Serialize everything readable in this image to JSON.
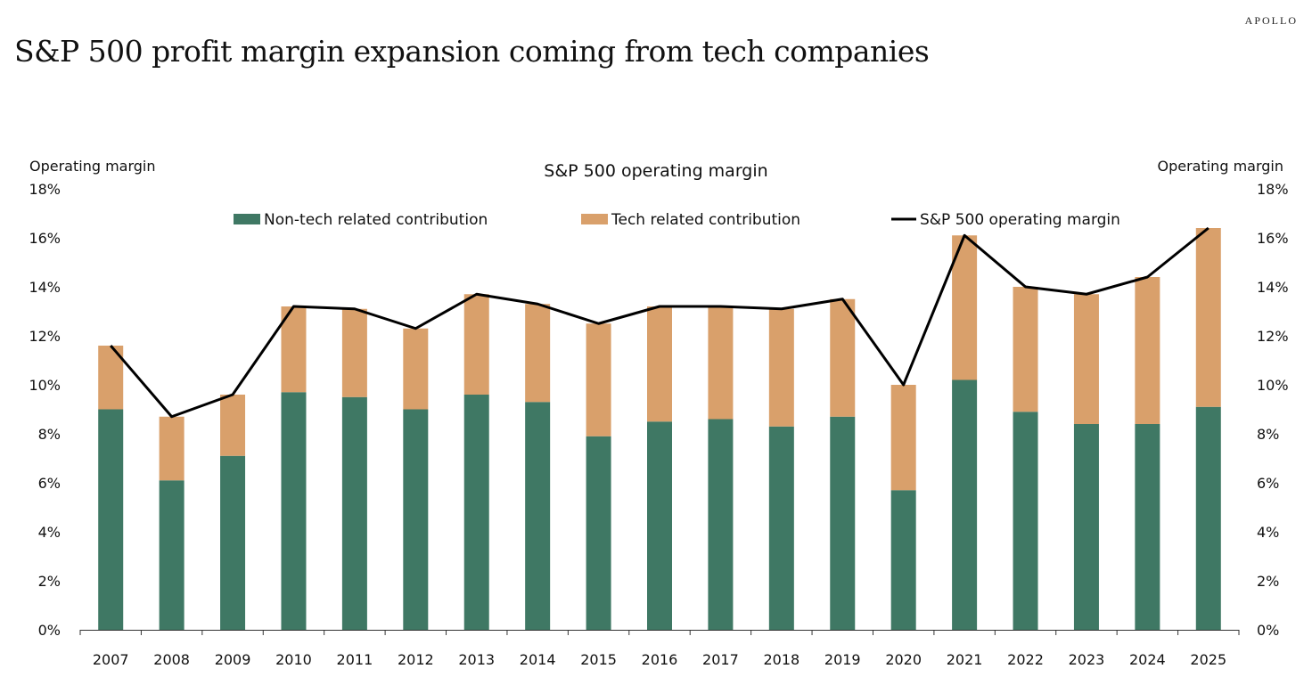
{
  "header": {
    "title": "S&P 500 profit margin expansion coming from tech companies",
    "brand": "APOLLO"
  },
  "chart_data": {
    "type": "bar",
    "title": "S&P 500 operating margin",
    "ylabel_left": "Operating margin",
    "ylabel_right": "Operating margin",
    "ylim": [
      0,
      18
    ],
    "yticks": [
      "0%",
      "2%",
      "4%",
      "6%",
      "8%",
      "10%",
      "12%",
      "14%",
      "16%",
      "18%"
    ],
    "legend_position": "top",
    "categories": [
      "2007",
      "2008",
      "2009",
      "2010",
      "2011",
      "2012",
      "2013",
      "2014",
      "2015",
      "2016",
      "2017",
      "2018",
      "2019",
      "2020",
      "2021",
      "2022",
      "2023",
      "2024",
      "2025"
    ],
    "series": [
      {
        "name": "Non-tech related contribution",
        "kind": "stacked-bar",
        "color": "#3f7864",
        "values": [
          9.0,
          6.1,
          7.1,
          9.7,
          9.5,
          9.0,
          9.6,
          9.3,
          7.9,
          8.5,
          8.6,
          8.3,
          8.7,
          5.7,
          10.2,
          8.9,
          8.4,
          8.4,
          9.1
        ]
      },
      {
        "name": "Tech related contribution",
        "kind": "stacked-bar",
        "color": "#d9a06b",
        "values": [
          2.6,
          2.6,
          2.5,
          3.5,
          3.6,
          3.3,
          4.1,
          4.0,
          4.6,
          4.7,
          4.6,
          4.8,
          4.8,
          4.3,
          5.9,
          5.1,
          5.3,
          6.0,
          7.3
        ]
      },
      {
        "name": "S&P 500 operating margin",
        "kind": "line",
        "color": "#000000",
        "values": [
          11.6,
          8.7,
          9.6,
          13.2,
          13.1,
          12.3,
          13.7,
          13.3,
          12.5,
          13.2,
          13.2,
          13.1,
          13.5,
          10.0,
          16.1,
          14.0,
          13.7,
          14.4,
          16.4
        ]
      }
    ]
  }
}
